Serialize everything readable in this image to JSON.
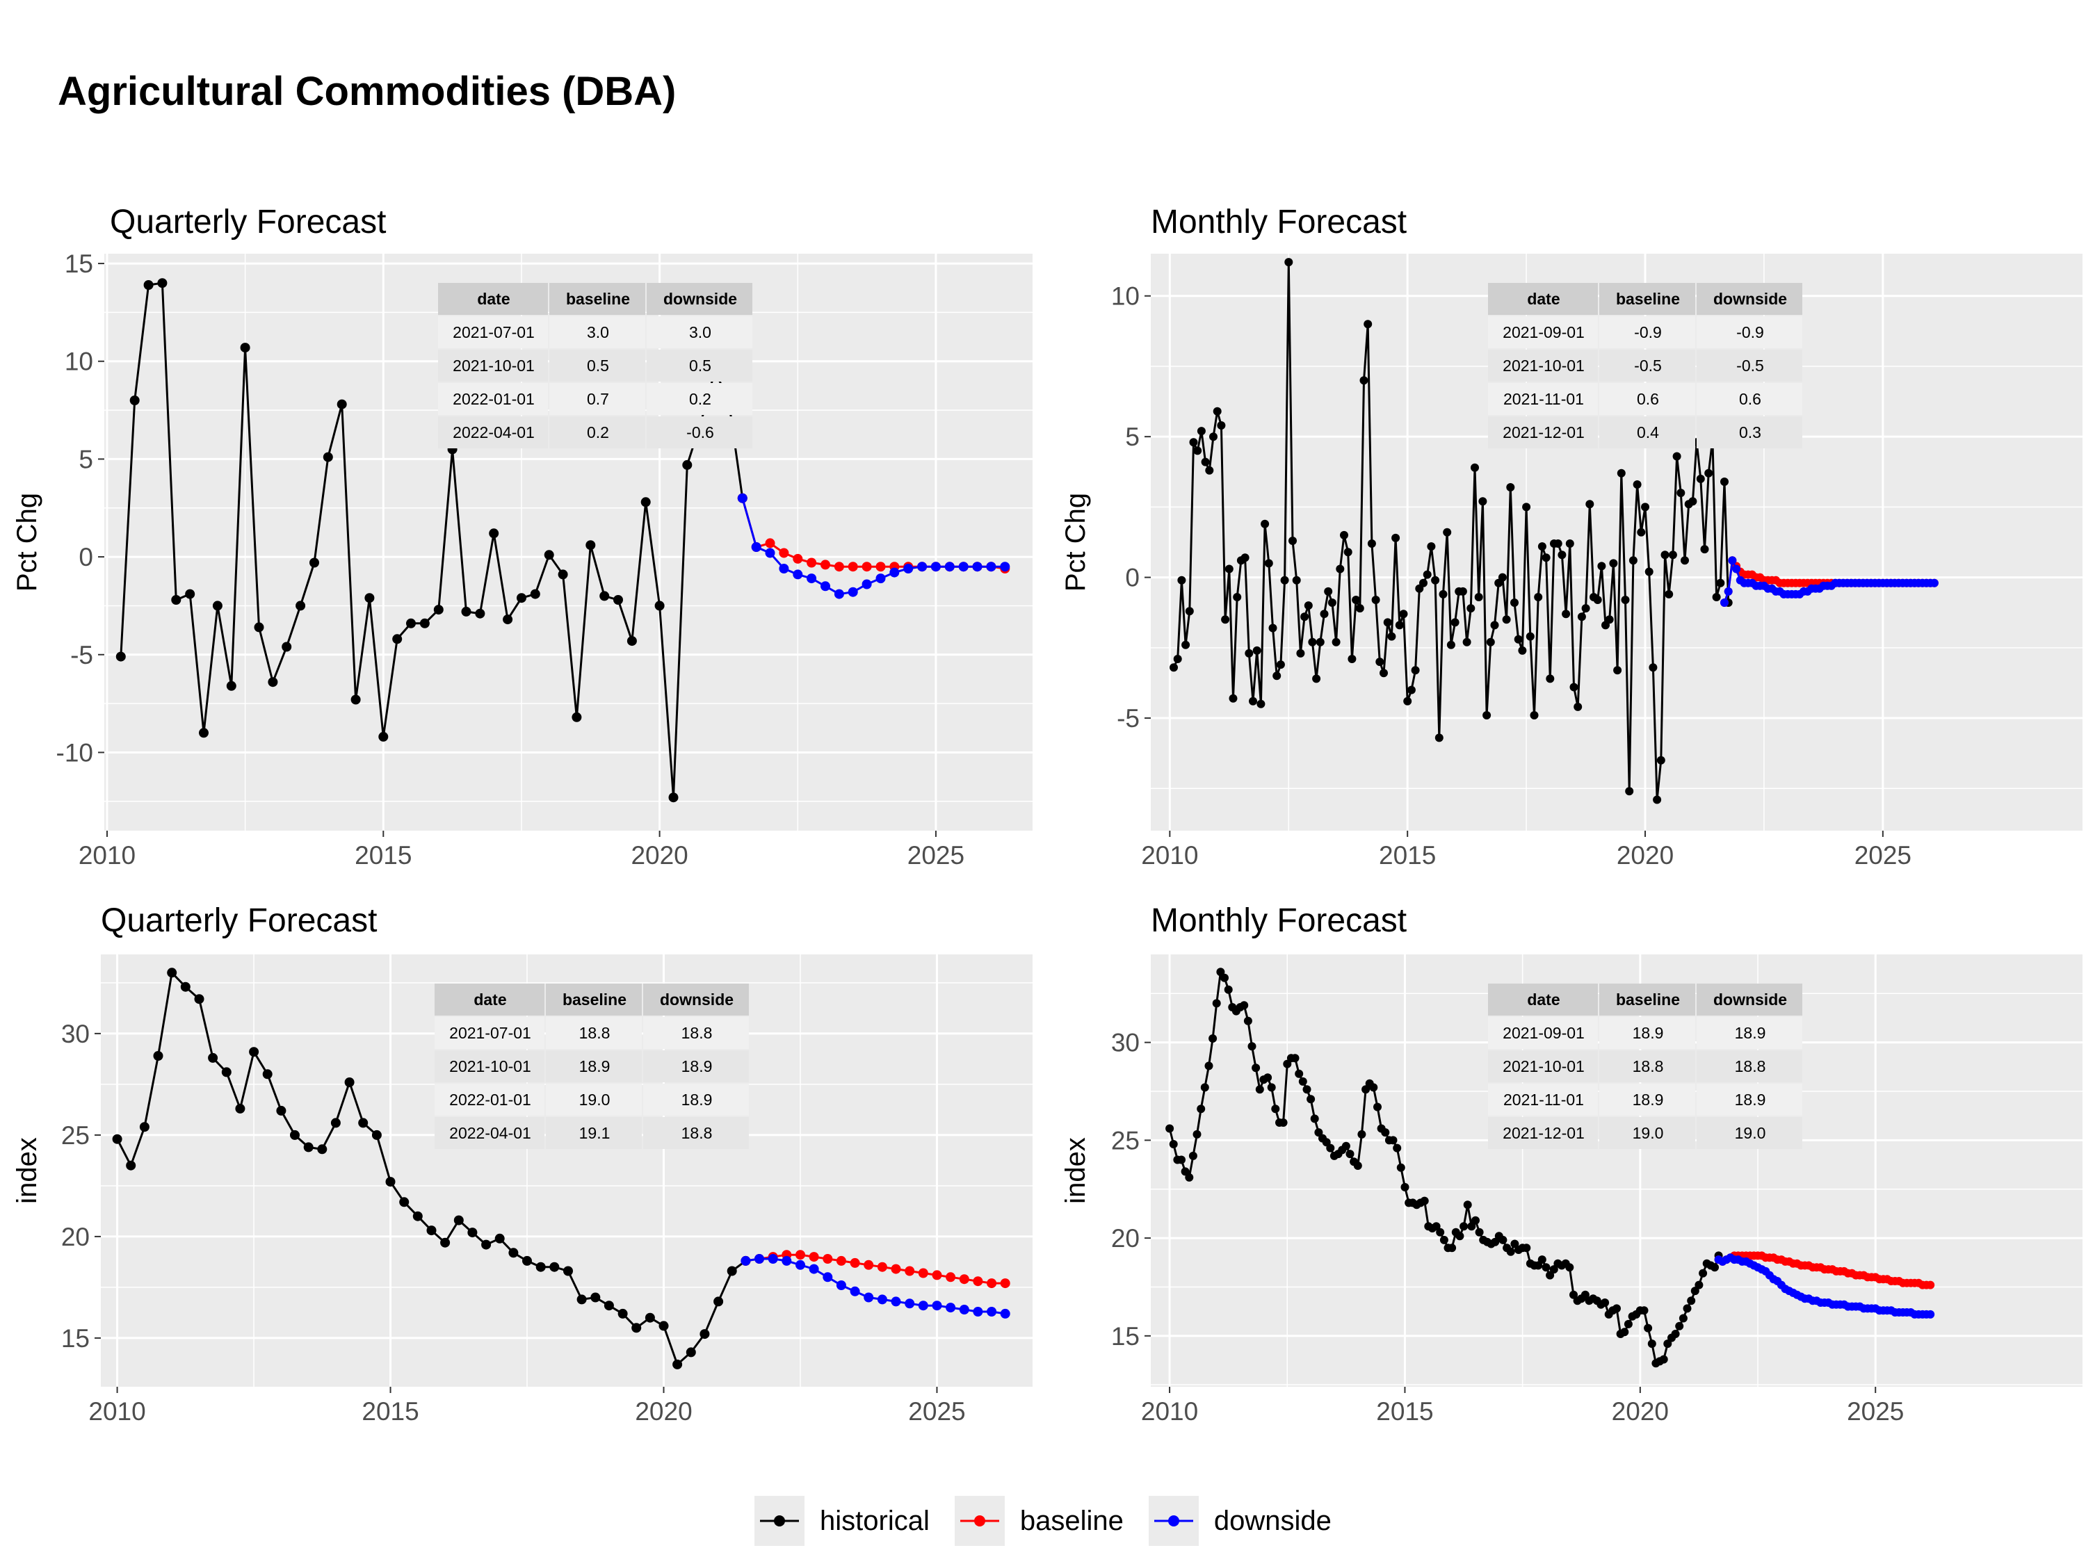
{
  "title": "Agricultural Commodities (DBA)",
  "colors": {
    "historical": "#000000",
    "baseline": "#ff0000",
    "downside": "#0000ff",
    "panel_bg": "#ebebeb",
    "grid": "#ffffff"
  },
  "legend": {
    "items": [
      {
        "key": "historical",
        "label": "historical"
      },
      {
        "key": "baseline",
        "label": "baseline"
      },
      {
        "key": "downside",
        "label": "downside"
      }
    ]
  },
  "chart_data": [
    {
      "type": "line",
      "title": "Quarterly Forecast",
      "xlabel": "",
      "ylabel": "Pct Chg",
      "xlim": [
        2009.95,
        2026.75
      ],
      "ylim": [
        -14,
        15.5
      ],
      "xticks": [
        2010,
        2015,
        2020,
        2025
      ],
      "yticks": [
        -10,
        -5,
        0,
        5,
        10,
        15
      ],
      "table": {
        "columns": [
          "date",
          "baseline",
          "downside"
        ],
        "rows": [
          [
            "2021-07-01",
            "3.0",
            "3.0"
          ],
          [
            "2021-10-01",
            "0.5",
            "0.5"
          ],
          [
            "2022-01-01",
            "0.7",
            "0.2"
          ],
          [
            "2022-04-01",
            "0.2",
            "-0.6"
          ]
        ]
      },
      "historical": {
        "x": [
          "2010-04",
          "2010-07",
          "2010-10",
          "2011-01",
          "2011-04",
          "2011-07",
          "2011-10",
          "2012-01",
          "2012-04",
          "2012-07",
          "2012-10",
          "2013-01",
          "2013-04",
          "2013-07",
          "2013-10",
          "2014-01",
          "2014-04",
          "2014-07",
          "2014-10",
          "2015-01",
          "2015-04",
          "2015-07",
          "2015-10",
          "2016-01",
          "2016-04",
          "2016-07",
          "2016-10",
          "2017-01",
          "2017-04",
          "2017-07",
          "2017-10",
          "2018-01",
          "2018-04",
          "2018-07",
          "2018-10",
          "2019-01",
          "2019-04",
          "2019-07",
          "2019-10",
          "2020-01",
          "2020-04",
          "2020-07",
          "2020-10",
          "2021-01",
          "2021-04",
          "2021-07"
        ],
        "y": [
          -5.1,
          8.0,
          13.9,
          14.0,
          -2.2,
          -1.9,
          -9.0,
          -2.5,
          -6.6,
          10.7,
          -3.6,
          -6.4,
          -4.6,
          -2.5,
          -0.3,
          5.1,
          7.8,
          -7.3,
          -2.1,
          -9.2,
          -4.2,
          -3.4,
          -3.4,
          -2.7,
          5.5,
          -2.8,
          -2.9,
          1.2,
          -3.2,
          -2.1,
          -1.9,
          0.1,
          -0.9,
          -8.2,
          0.6,
          -2.0,
          -2.2,
          -4.3,
          2.8,
          -2.5,
          -12.3,
          4.7,
          6.9,
          9.5,
          8.0,
          3.0
        ]
      },
      "baseline": {
        "x": [
          "2021-07",
          "2021-10",
          "2022-01",
          "2022-04",
          "2022-07",
          "2022-10",
          "2023-01",
          "2023-04",
          "2023-07",
          "2023-10",
          "2024-01",
          "2024-04",
          "2024-07",
          "2024-10",
          "2025-01",
          "2025-04",
          "2025-07",
          "2025-10",
          "2026-01",
          "2026-04"
        ],
        "y": [
          3.0,
          0.5,
          0.7,
          0.2,
          -0.1,
          -0.3,
          -0.4,
          -0.5,
          -0.5,
          -0.5,
          -0.5,
          -0.5,
          -0.5,
          -0.5,
          -0.5,
          -0.5,
          -0.5,
          -0.5,
          -0.5,
          -0.6
        ]
      },
      "downside": {
        "x": [
          "2021-07",
          "2021-10",
          "2022-01",
          "2022-04",
          "2022-07",
          "2022-10",
          "2023-01",
          "2023-04",
          "2023-07",
          "2023-10",
          "2024-01",
          "2024-04",
          "2024-07",
          "2024-10",
          "2025-01",
          "2025-04",
          "2025-07",
          "2025-10",
          "2026-01",
          "2026-04"
        ],
        "y": [
          3.0,
          0.5,
          0.2,
          -0.6,
          -0.9,
          -1.1,
          -1.5,
          -1.9,
          -1.8,
          -1.4,
          -1.1,
          -0.8,
          -0.6,
          -0.5,
          -0.5,
          -0.5,
          -0.5,
          -0.5,
          -0.5,
          -0.5
        ]
      }
    },
    {
      "type": "line",
      "title": "Monthly Forecast",
      "xlabel": "",
      "ylabel": "Pct Chg",
      "xlim": [
        2009.6,
        2029.2
      ],
      "ylim": [
        -9,
        11.5
      ],
      "xticks": [
        2010,
        2015,
        2020,
        2025
      ],
      "yticks": [
        -5,
        0,
        5,
        10
      ],
      "table": {
        "columns": [
          "date",
          "baseline",
          "downside"
        ],
        "rows": [
          [
            "2021-09-01",
            "-0.9",
            "-0.9"
          ],
          [
            "2021-10-01",
            "-0.5",
            "-0.5"
          ],
          [
            "2021-11-01",
            "0.6",
            "0.6"
          ],
          [
            "2021-12-01",
            "0.4",
            "0.3"
          ]
        ]
      },
      "historical": {
        "start": "2010-02",
        "y": [
          -3.2,
          -2.9,
          -0.1,
          -2.4,
          -1.2,
          4.8,
          4.5,
          5.2,
          4.1,
          3.8,
          5.0,
          5.9,
          5.4,
          -1.5,
          0.3,
          -4.3,
          -0.7,
          0.6,
          0.7,
          -2.7,
          -4.4,
          -2.6,
          -4.5,
          1.9,
          0.5,
          -1.8,
          -3.5,
          -3.1,
          -0.1,
          11.2,
          1.3,
          -0.1,
          -2.7,
          -1.4,
          -1.0,
          -2.3,
          -3.6,
          -2.3,
          -1.3,
          -0.5,
          -0.9,
          -2.3,
          0.3,
          1.5,
          0.9,
          -2.9,
          -0.8,
          -1.1,
          7.0,
          9.0,
          1.2,
          -0.8,
          -3.0,
          -3.4,
          -1.6,
          -2.1,
          1.4,
          -1.7,
          -1.3,
          -4.4,
          -4.0,
          -3.3,
          -0.4,
          -0.2,
          0.1,
          1.1,
          -0.1,
          -5.7,
          -0.6,
          1.6,
          -2.4,
          -1.6,
          -0.5,
          -0.5,
          -2.3,
          -1.1,
          3.9,
          -0.7,
          2.7,
          -4.9,
          -2.3,
          -1.7,
          -0.2,
          0.0,
          -1.5,
          3.2,
          -0.9,
          -2.2,
          -2.6,
          2.5,
          -2.1,
          -4.9,
          -0.7,
          1.1,
          0.7,
          -3.6,
          1.2,
          1.2,
          0.8,
          -1.3,
          1.2,
          -3.9,
          -4.6,
          -1.4,
          -1.1,
          2.6,
          -0.7,
          -0.8,
          0.4,
          -1.7,
          -1.5,
          0.5,
          -3.3,
          3.7,
          -0.8,
          -7.6,
          0.6,
          3.3,
          1.6,
          2.5,
          0.2,
          -3.2,
          -7.9,
          -6.5,
          0.8,
          -0.6,
          0.8,
          4.3,
          3.0,
          0.6,
          2.6,
          2.7,
          4.8,
          3.5,
          1.0,
          3.7,
          4.9,
          -0.7,
          -0.2,
          3.4,
          -0.9
        ]
      },
      "baseline": {
        "start": "2021-09",
        "y": [
          -0.9,
          -0.5,
          0.6,
          0.4,
          0.2,
          0.1,
          0.1,
          0.1,
          0.0,
          0.0,
          -0.1,
          -0.1,
          -0.1,
          -0.1,
          -0.2,
          -0.2,
          -0.2,
          -0.2,
          -0.2,
          -0.2,
          -0.2,
          -0.2,
          -0.2,
          -0.2,
          -0.2,
          -0.2,
          -0.2,
          -0.2,
          -0.2,
          -0.2,
          -0.2,
          -0.2,
          -0.2,
          -0.2,
          -0.2,
          -0.2,
          -0.2,
          -0.2,
          -0.2,
          -0.2,
          -0.2,
          -0.2,
          -0.2,
          -0.2,
          -0.2,
          -0.2,
          -0.2,
          -0.2,
          -0.2,
          -0.2,
          -0.2,
          -0.2,
          -0.2,
          -0.2
        ]
      },
      "downside": {
        "start": "2021-09",
        "y": [
          -0.9,
          -0.5,
          0.6,
          0.3,
          -0.1,
          -0.2,
          -0.2,
          -0.2,
          -0.3,
          -0.3,
          -0.3,
          -0.4,
          -0.4,
          -0.5,
          -0.5,
          -0.6,
          -0.6,
          -0.6,
          -0.6,
          -0.6,
          -0.5,
          -0.5,
          -0.4,
          -0.4,
          -0.4,
          -0.3,
          -0.3,
          -0.3,
          -0.2,
          -0.2,
          -0.2,
          -0.2,
          -0.2,
          -0.2,
          -0.2,
          -0.2,
          -0.2,
          -0.2,
          -0.2,
          -0.2,
          -0.2,
          -0.2,
          -0.2,
          -0.2,
          -0.2,
          -0.2,
          -0.2,
          -0.2,
          -0.2,
          -0.2,
          -0.2,
          -0.2,
          -0.2,
          -0.2
        ]
      }
    },
    {
      "type": "line",
      "title": "Quarterly Forecast",
      "xlabel": "",
      "ylabel": "index",
      "xlim": [
        2009.7,
        2026.75
      ],
      "ylim": [
        12.6,
        33.9
      ],
      "xticks": [
        2010,
        2015,
        2020,
        2025
      ],
      "yticks": [
        15,
        20,
        25,
        30
      ],
      "table": {
        "columns": [
          "date",
          "baseline",
          "downside"
        ],
        "rows": [
          [
            "2021-07-01",
            "18.8",
            "18.8"
          ],
          [
            "2021-10-01",
            "18.9",
            "18.9"
          ],
          [
            "2022-01-01",
            "19.0",
            "18.9"
          ],
          [
            "2022-04-01",
            "19.1",
            "18.8"
          ]
        ]
      },
      "historical": {
        "x": [
          "2010-01",
          "2010-04",
          "2010-07",
          "2010-10",
          "2011-01",
          "2011-04",
          "2011-07",
          "2011-10",
          "2012-01",
          "2012-04",
          "2012-07",
          "2012-10",
          "2013-01",
          "2013-04",
          "2013-07",
          "2013-10",
          "2014-01",
          "2014-04",
          "2014-07",
          "2014-10",
          "2015-01",
          "2015-04",
          "2015-07",
          "2015-10",
          "2016-01",
          "2016-04",
          "2016-07",
          "2016-10",
          "2017-01",
          "2017-04",
          "2017-07",
          "2017-10",
          "2018-01",
          "2018-04",
          "2018-07",
          "2018-10",
          "2019-01",
          "2019-04",
          "2019-07",
          "2019-10",
          "2020-01",
          "2020-04",
          "2020-07",
          "2020-10",
          "2021-01",
          "2021-04",
          "2021-07"
        ],
        "y": [
          24.8,
          23.5,
          25.4,
          28.9,
          33.0,
          32.3,
          31.7,
          28.8,
          28.1,
          26.3,
          29.1,
          28.0,
          26.2,
          25.0,
          24.4,
          24.3,
          25.6,
          27.6,
          25.6,
          25.0,
          22.7,
          21.7,
          21.0,
          20.3,
          19.7,
          20.8,
          20.2,
          19.6,
          19.9,
          19.2,
          18.8,
          18.5,
          18.5,
          18.3,
          16.9,
          17.0,
          16.6,
          16.2,
          15.5,
          16.0,
          15.6,
          13.7,
          14.3,
          15.2,
          16.8,
          18.3,
          18.8
        ]
      },
      "baseline": {
        "x": [
          "2021-07",
          "2021-10",
          "2022-01",
          "2022-04",
          "2022-07",
          "2022-10",
          "2023-01",
          "2023-04",
          "2023-07",
          "2023-10",
          "2024-01",
          "2024-04",
          "2024-07",
          "2024-10",
          "2025-01",
          "2025-04",
          "2025-07",
          "2025-10",
          "2026-01",
          "2026-04"
        ],
        "y": [
          18.8,
          18.9,
          19.0,
          19.1,
          19.1,
          19.0,
          18.9,
          18.8,
          18.7,
          18.6,
          18.5,
          18.4,
          18.3,
          18.2,
          18.1,
          18.0,
          17.9,
          17.8,
          17.7,
          17.7
        ]
      },
      "downside": {
        "x": [
          "2021-07",
          "2021-10",
          "2022-01",
          "2022-04",
          "2022-07",
          "2022-10",
          "2023-01",
          "2023-04",
          "2023-07",
          "2023-10",
          "2024-01",
          "2024-04",
          "2024-07",
          "2024-10",
          "2025-01",
          "2025-04",
          "2025-07",
          "2025-10",
          "2026-01",
          "2026-04"
        ],
        "y": [
          18.8,
          18.9,
          18.9,
          18.8,
          18.6,
          18.4,
          18.0,
          17.6,
          17.3,
          17.0,
          16.9,
          16.8,
          16.7,
          16.6,
          16.6,
          16.5,
          16.4,
          16.3,
          16.3,
          16.2
        ]
      }
    },
    {
      "type": "line",
      "title": "Monthly Forecast",
      "xlabel": "",
      "ylabel": "index",
      "xlim": [
        2009.6,
        2029.4
      ],
      "ylim": [
        12.4,
        34.5
      ],
      "xticks": [
        2010,
        2015,
        2020,
        2025
      ],
      "yticks": [
        15,
        20,
        25,
        30
      ],
      "table": {
        "columns": [
          "date",
          "baseline",
          "downside"
        ],
        "rows": [
          [
            "2021-09-01",
            "18.9",
            "18.9"
          ],
          [
            "2021-10-01",
            "18.8",
            "18.8"
          ],
          [
            "2021-11-01",
            "18.9",
            "18.9"
          ],
          [
            "2021-12-01",
            "19.0",
            "19.0"
          ]
        ]
      },
      "historical": {
        "start": "2010-01",
        "y": [
          25.6,
          24.8,
          24.0,
          24.0,
          23.4,
          23.1,
          24.2,
          25.3,
          26.6,
          27.7,
          28.8,
          30.2,
          32.0,
          33.6,
          33.3,
          32.7,
          31.8,
          31.6,
          31.8,
          31.9,
          31.1,
          29.8,
          28.7,
          27.6,
          28.1,
          28.2,
          27.7,
          26.6,
          25.9,
          25.9,
          28.9,
          29.2,
          29.2,
          28.4,
          28.0,
          27.6,
          27.1,
          26.1,
          25.4,
          25.1,
          24.9,
          24.6,
          24.2,
          24.3,
          24.5,
          24.7,
          24.3,
          23.9,
          23.7,
          25.3,
          27.6,
          27.9,
          27.7,
          26.7,
          25.6,
          25.4,
          25.0,
          25.0,
          24.6,
          23.6,
          22.6,
          21.8,
          21.8,
          21.7,
          21.8,
          21.9,
          20.6,
          20.5,
          20.6,
          20.3,
          19.9,
          19.5,
          19.5,
          20.3,
          20.1,
          20.6,
          21.7,
          20.6,
          20.9,
          20.3,
          19.9,
          19.8,
          19.7,
          19.8,
          20.1,
          19.9,
          19.5,
          19.3,
          19.7,
          19.4,
          19.5,
          19.5,
          18.7,
          18.6,
          18.6,
          18.9,
          18.5,
          18.1,
          18.4,
          18.7,
          18.6,
          18.7,
          18.5,
          17.1,
          16.8,
          16.9,
          17.1,
          16.8,
          16.9,
          16.8,
          16.6,
          16.7,
          16.1,
          16.3,
          16.4,
          15.1,
          15.2,
          15.6,
          16.0,
          16.1,
          16.3,
          16.3,
          15.4,
          14.6,
          13.6,
          13.7,
          13.8,
          14.6,
          14.9,
          15.1,
          15.5,
          15.9,
          16.4,
          16.8,
          17.3,
          17.6,
          18.2,
          18.7,
          18.6,
          18.5,
          19.1
        ]
      },
      "baseline": {
        "start": "2021-09",
        "y": [
          18.9,
          18.8,
          18.9,
          19.0,
          19.1,
          19.1,
          19.1,
          19.1,
          19.1,
          19.1,
          19.1,
          19.1,
          19.0,
          19.0,
          19.0,
          18.9,
          18.9,
          18.8,
          18.8,
          18.7,
          18.7,
          18.6,
          18.6,
          18.6,
          18.5,
          18.5,
          18.5,
          18.4,
          18.4,
          18.4,
          18.3,
          18.3,
          18.3,
          18.2,
          18.2,
          18.1,
          18.1,
          18.1,
          18.0,
          18.0,
          18.0,
          17.9,
          17.9,
          17.9,
          17.8,
          17.8,
          17.8,
          17.7,
          17.7,
          17.7,
          17.7,
          17.7,
          17.6,
          17.6,
          17.6
        ]
      },
      "downside": {
        "start": "2021-09",
        "y": [
          18.9,
          18.8,
          18.9,
          19.0,
          18.9,
          18.9,
          18.8,
          18.8,
          18.7,
          18.6,
          18.5,
          18.4,
          18.3,
          18.1,
          17.9,
          17.8,
          17.6,
          17.4,
          17.3,
          17.2,
          17.1,
          17.0,
          16.9,
          16.9,
          16.8,
          16.8,
          16.7,
          16.7,
          16.7,
          16.6,
          16.6,
          16.6,
          16.6,
          16.5,
          16.5,
          16.5,
          16.5,
          16.4,
          16.4,
          16.4,
          16.4,
          16.3,
          16.3,
          16.3,
          16.3,
          16.2,
          16.2,
          16.2,
          16.2,
          16.2,
          16.1,
          16.1,
          16.1,
          16.1,
          16.1
        ]
      }
    }
  ]
}
